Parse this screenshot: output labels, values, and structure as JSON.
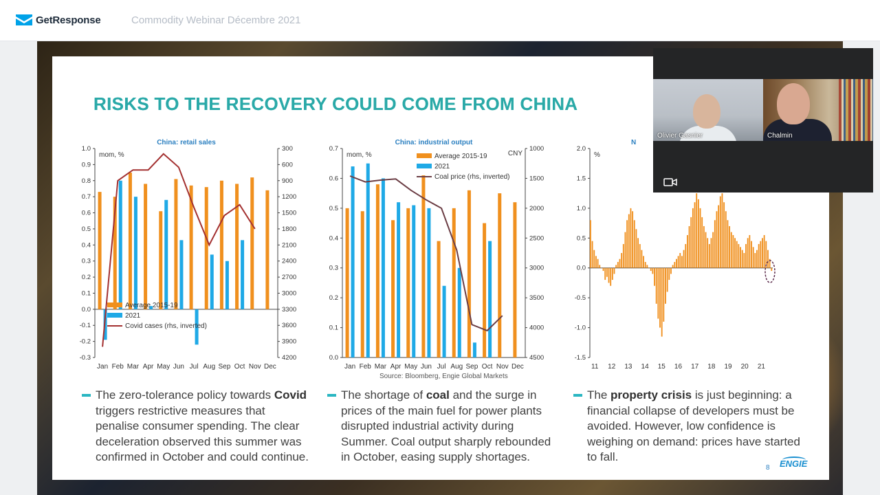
{
  "app": {
    "logo_text": "GetResponse",
    "webinar_title": "Commodity Webinar Décembre 2021"
  },
  "slide": {
    "title": "RISKS TO THE RECOVERY COULD COME FROM CHINA",
    "source": "Source: Bloomberg, Engie Global Markets",
    "page_number": "8",
    "brand": "ENGIE",
    "bullets": [
      {
        "pre": "The zero-tolerance policy towards ",
        "bold": "Covid",
        "post": " triggers restrictive measures that penalise consumer spending. The clear deceleration observed this summer was confirmed in October and could continue."
      },
      {
        "pre": "The shortage of ",
        "bold": "coal",
        "post": " and the surge in prices of the main fuel for power plants disrupted industrial activity during Summer. Coal output sharply rebounded in October, easing supply shortages."
      },
      {
        "pre": "The ",
        "bold": "property crisis",
        "post": " is just beginning: a financial collapse of developers must be avoided. However, low confidence is weighing on demand: prices have started to fall."
      }
    ]
  },
  "chart_data": [
    {
      "type": "bar",
      "title": "China: retail sales",
      "ylabel": "mom, %",
      "ylim": [
        -0.3,
        1.0
      ],
      "y_ticks": [
        "1.0",
        "0.9",
        "0.8",
        "0.7",
        "0.6",
        "0.5",
        "0.4",
        "0.3",
        "0.2",
        "0.1",
        "0.0",
        "-0.1",
        "-0.2",
        "-0.3"
      ],
      "y2_ticks": [
        "300",
        "600",
        "900",
        "1200",
        "1500",
        "1800",
        "2100",
        "2400",
        "2700",
        "3000",
        "3300",
        "3600",
        "3900",
        "4200"
      ],
      "y2lim": [
        300,
        4200
      ],
      "y2_inverted": true,
      "categories": [
        "Jan",
        "Feb",
        "Mar",
        "Apr",
        "May",
        "Jun",
        "Jul",
        "Aug",
        "Sep",
        "Oct",
        "Nov",
        "Dec"
      ],
      "series": [
        {
          "name": "Average 2015-19",
          "color": "#f0901e",
          "values": [
            0.73,
            0.7,
            0.85,
            0.78,
            0.61,
            0.81,
            0.77,
            0.76,
            0.8,
            0.78,
            0.82,
            0.74
          ]
        },
        {
          "name": "2021",
          "color": "#1fa9e6",
          "values": [
            -0.19,
            0.8,
            0.7,
            0.02,
            0.68,
            0.43,
            -0.22,
            0.34,
            0.3,
            0.43,
            null,
            null
          ]
        },
        {
          "name": "Covid cases (rhs, inverted)",
          "color": "#a33030",
          "type": "line",
          "axis": "right",
          "values": [
            4000,
            900,
            700,
            700,
            400,
            650,
            1400,
            2100,
            1550,
            1350,
            1800,
            null
          ]
        }
      ]
    },
    {
      "type": "bar",
      "title": "China: industrial output",
      "ylabel": "mom, %",
      "y2label": "CNY",
      "ylim": [
        0,
        0.7
      ],
      "y_ticks": [
        "0.7",
        "0.6",
        "0.5",
        "0.4",
        "0.3",
        "0.2",
        "0.1",
        "0.0"
      ],
      "y2_ticks": [
        "1000",
        "1500",
        "2000",
        "2500",
        "3000",
        "3500",
        "4000",
        "4500"
      ],
      "y2lim": [
        1000,
        4500
      ],
      "y2_inverted": true,
      "categories": [
        "Jan",
        "Feb",
        "Mar",
        "Apr",
        "May",
        "Jun",
        "Jul",
        "Aug",
        "Sep",
        "Oct",
        "Nov",
        "Dec"
      ],
      "series": [
        {
          "name": "Average 2015-19",
          "color": "#f0901e",
          "values": [
            0.5,
            0.49,
            0.58,
            0.46,
            0.5,
            0.61,
            0.39,
            0.5,
            0.56,
            0.45,
            0.55,
            0.52
          ]
        },
        {
          "name": "2021",
          "color": "#1fa9e6",
          "values": [
            0.64,
            0.65,
            0.6,
            0.52,
            0.51,
            0.5,
            0.24,
            0.3,
            0.05,
            0.39,
            null,
            null
          ]
        },
        {
          "name": "Coal price (rhs, inverted)",
          "color": "#6b3d44",
          "type": "line",
          "axis": "right",
          "values": [
            1460,
            1560,
            1530,
            1510,
            1700,
            1860,
            2000,
            2700,
            3950,
            4050,
            3800,
            null
          ]
        }
      ]
    },
    {
      "type": "bar",
      "title": "N",
      "ylabel": "%",
      "ylim": [
        -1.5,
        2.0
      ],
      "y_ticks": [
        "2.0",
        "1.5",
        "1.0",
        "0.5",
        "0.0",
        "-0.5",
        "-1.0",
        "-1.5"
      ],
      "x_ticks": [
        "11",
        "12",
        "13",
        "14",
        "15",
        "16",
        "17",
        "18",
        "19",
        "20",
        "21"
      ],
      "series": [
        {
          "name": "",
          "color": "#f0901e",
          "values": [
            0.8,
            0.45,
            0.3,
            0.2,
            0.15,
            0.05,
            0.0,
            -0.05,
            -0.2,
            -0.15,
            -0.25,
            -0.3,
            -0.2,
            -0.1,
            0.05,
            0.1,
            0.15,
            0.25,
            0.4,
            0.6,
            0.8,
            0.9,
            1.0,
            0.95,
            0.8,
            0.65,
            0.5,
            0.4,
            0.3,
            0.2,
            0.1,
            0.05,
            0.0,
            -0.05,
            -0.1,
            -0.3,
            -0.6,
            -0.85,
            -1.0,
            -1.15,
            -0.9,
            -0.6,
            -0.4,
            -0.2,
            -0.1,
            0.05,
            0.1,
            0.15,
            0.2,
            0.25,
            0.2,
            0.3,
            0.4,
            0.55,
            0.7,
            0.85,
            1.0,
            1.1,
            1.25,
            1.15,
            1.0,
            0.85,
            0.7,
            0.6,
            0.5,
            0.4,
            0.5,
            0.6,
            0.8,
            0.95,
            1.05,
            1.2,
            1.25,
            1.1,
            0.95,
            0.8,
            0.7,
            0.6,
            0.55,
            0.5,
            0.45,
            0.4,
            0.35,
            0.3,
            0.25,
            0.4,
            0.5,
            0.55,
            0.45,
            0.35,
            0.25,
            0.3,
            0.4,
            0.45,
            0.5,
            0.55,
            0.45,
            0.3,
            0.15,
            -0.05
          ]
        }
      ]
    }
  ],
  "video": {
    "participants": [
      {
        "name": "Olivier Gasnier"
      },
      {
        "name": "Chalmin"
      }
    ],
    "camera_icon": "camera-icon"
  }
}
